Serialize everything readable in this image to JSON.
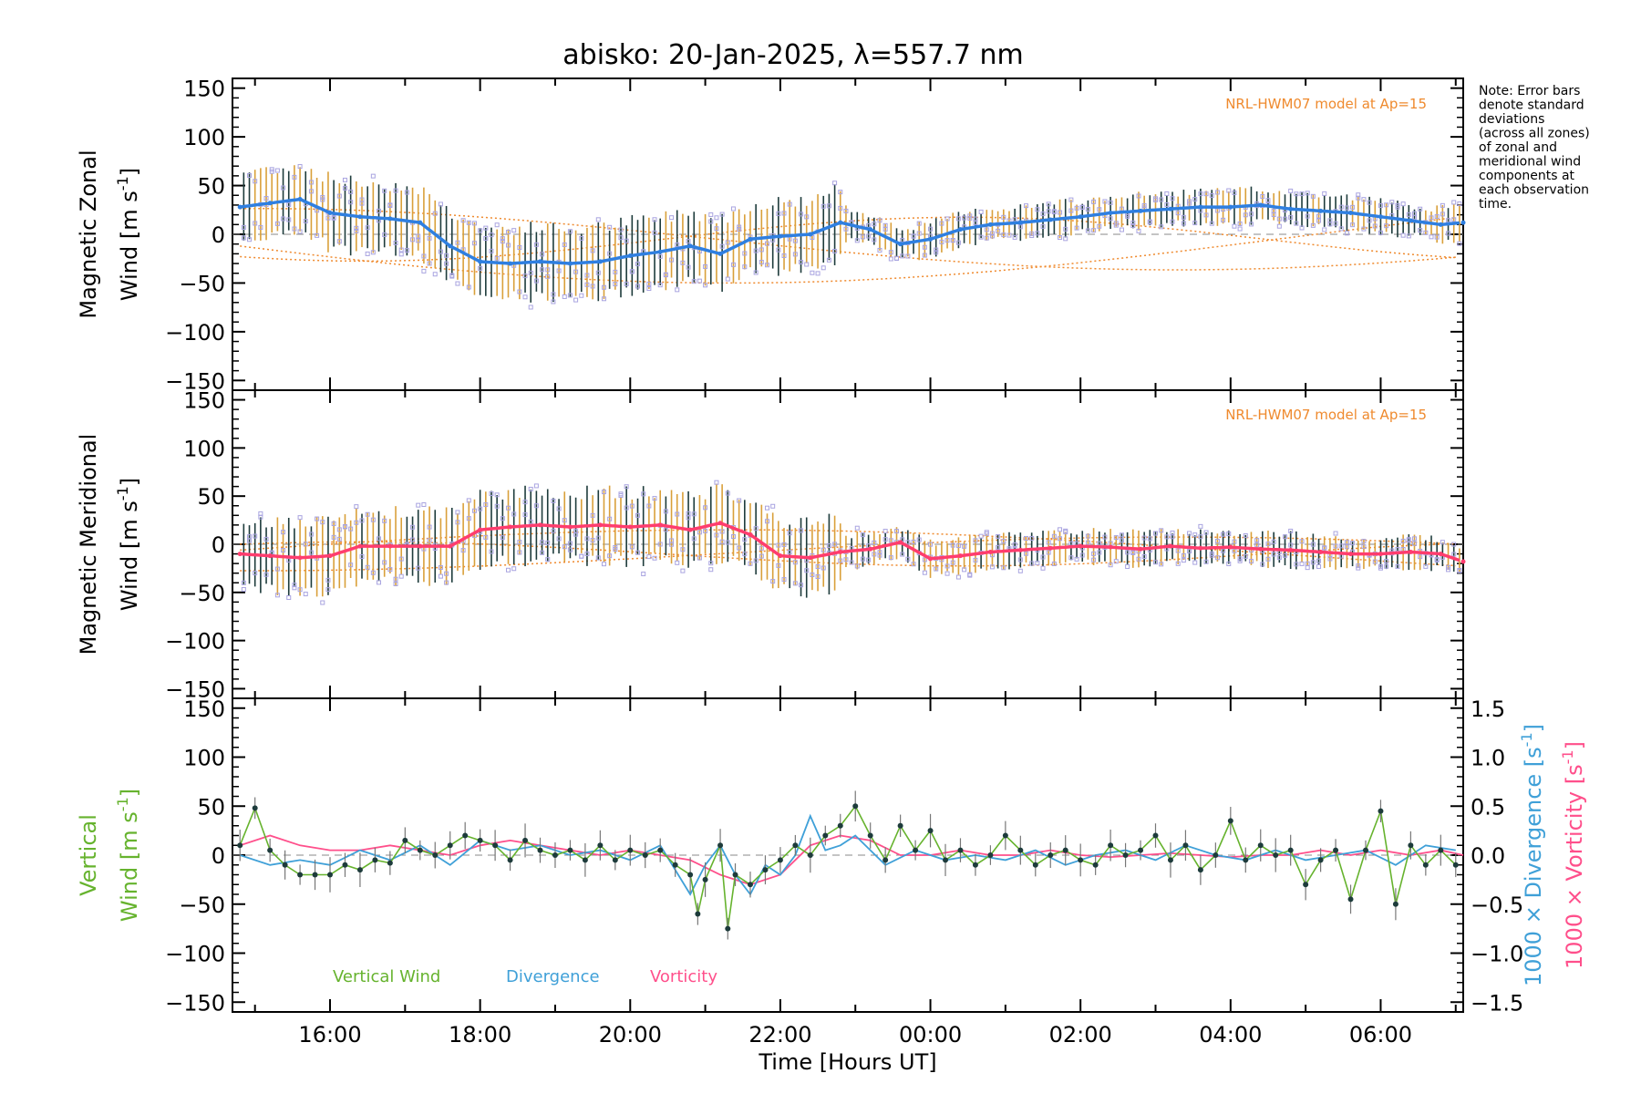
{
  "title": "abisko: 20-Jan-2025, λ=557.7 nm",
  "xlabel": "Time [Hours UT]",
  "x_ticks": [
    "16:00",
    "18:00",
    "20:00",
    "22:00",
    "00:00",
    "02:00",
    "04:00",
    "06:00"
  ],
  "y_ticks": [
    "150",
    "100",
    "50",
    "0",
    "−50",
    "−100",
    "−150"
  ],
  "right_ticks": [
    "1.5",
    "1.0",
    "0.5",
    "0.0",
    "−0.5",
    "−1.0",
    "−1.5"
  ],
  "note": [
    "Note: Error bars",
    "denote standard",
    "deviations",
    "(across all zones)",
    "of zonal and",
    "meridional wind",
    "components at",
    "each observation",
    "time."
  ],
  "model_label": "NRL-HWM07 model at Ap=15",
  "panels": {
    "zonal": {
      "ylabel_line1": "Magnetic Zonal",
      "ylabel_line2": "Wind [m s",
      "sup": "-1",
      "close": "]"
    },
    "meridional": {
      "ylabel_line1": "Magnetic Meridional",
      "ylabel_line2": "Wind [m s",
      "sup": "-1",
      "close": "]"
    },
    "vertical": {
      "ylabel_line1": "Vertical",
      "ylabel_line2": "Wind [m s",
      "sup": "-1",
      "close": "]"
    }
  },
  "right_axis": {
    "div_label": "1000 × Divergence [s",
    "div_sup": "-1",
    "div_close": "]",
    "vort_label": "1000 × Vorticity [s",
    "vort_sup": "-1",
    "vort_close": "]"
  },
  "legend": {
    "vertical": "Vertical Wind",
    "divergence": "Divergence",
    "vorticity": "Vorticity"
  },
  "colors": {
    "zonal": "#2f7fe0",
    "meridional": "#ff3d6e",
    "vertical": "#66b32e",
    "divergence": "#3fa0d8",
    "vorticity": "#ff4f8b",
    "model": "#ef8a2e",
    "scatter": "#a9a4e0",
    "errbar": "#1d3b3b",
    "text": "#000000"
  },
  "chart_data": [
    {
      "type": "line",
      "title": "abisko: 20-Jan-2025, λ=557.7 nm",
      "ylabel": "Magnetic Zonal Wind [m s-1]",
      "xlim": [
        14.7,
        31.1
      ],
      "ylim": [
        -160,
        160
      ],
      "series": [
        {
          "x": [
            14.8,
            15.2,
            15.6,
            16.0,
            16.4,
            16.8,
            17.2,
            17.6,
            18.0,
            18.4,
            18.8,
            19.2,
            19.6,
            20.0,
            20.4,
            20.8,
            21.2,
            21.6,
            22.0,
            22.4,
            22.8,
            23.2,
            23.6,
            24.0,
            24.4,
            24.8,
            25.2,
            25.6,
            26.0,
            26.4,
            26.8,
            27.2,
            27.6,
            28.0,
            28.4,
            28.8,
            29.2,
            29.6,
            30.0,
            30.4,
            30.8,
            31.1
          ],
          "values": [
            28,
            32,
            36,
            22,
            18,
            16,
            12,
            -12,
            -28,
            -30,
            -28,
            -30,
            -28,
            -22,
            -18,
            -12,
            -20,
            -5,
            -2,
            0,
            12,
            5,
            -10,
            -5,
            5,
            10,
            12,
            15,
            18,
            22,
            24,
            26,
            28,
            28,
            30,
            26,
            24,
            22,
            18,
            14,
            10,
            12
          ]
        }
      ]
    },
    {
      "type": "line",
      "ylabel": "Magnetic Meridional Wind [m s-1]",
      "xlim": [
        14.7,
        31.1
      ],
      "ylim": [
        -160,
        160
      ],
      "series": [
        {
          "x": [
            14.8,
            15.2,
            15.6,
            16.0,
            16.4,
            16.8,
            17.2,
            17.6,
            18.0,
            18.4,
            18.8,
            19.2,
            19.6,
            20.0,
            20.4,
            20.8,
            21.2,
            21.6,
            22.0,
            22.4,
            22.8,
            23.2,
            23.6,
            24.0,
            24.4,
            24.8,
            25.2,
            25.6,
            26.0,
            26.4,
            26.8,
            27.2,
            27.6,
            28.0,
            28.4,
            28.8,
            29.2,
            29.6,
            30.0,
            30.4,
            30.8,
            31.1
          ],
          "values": [
            -10,
            -12,
            -14,
            -12,
            -2,
            -2,
            -2,
            -2,
            15,
            18,
            20,
            18,
            20,
            18,
            20,
            15,
            22,
            10,
            -12,
            -14,
            -8,
            -5,
            2,
            -15,
            -12,
            -8,
            -6,
            -4,
            -2,
            -3,
            -5,
            -2,
            -4,
            -3,
            -5,
            -6,
            -8,
            -10,
            -10,
            -8,
            -10,
            -18
          ]
        }
      ]
    },
    {
      "type": "line",
      "legend": [
        "Vertical Wind",
        "Divergence",
        "Vorticity"
      ],
      "ylabel": "Vertical Wind [m s-1]",
      "xlim": [
        14.7,
        31.1
      ],
      "ylim": [
        -160,
        160
      ],
      "y2label": "1000 × Divergence [s-1] / 1000 × Vorticity [s-1]",
      "y2lim": [
        -1.6,
        1.6
      ],
      "series": [
        {
          "name": "Vertical Wind",
          "x": [
            14.8,
            15.0,
            15.2,
            15.4,
            15.6,
            15.8,
            16.0,
            16.2,
            16.4,
            16.6,
            16.8,
            17.0,
            17.2,
            17.4,
            17.6,
            17.8,
            18.0,
            18.2,
            18.4,
            18.6,
            18.8,
            19.0,
            19.2,
            19.4,
            19.6,
            19.8,
            20.0,
            20.2,
            20.4,
            20.6,
            20.8,
            20.9,
            21.0,
            21.2,
            21.3,
            21.4,
            21.6,
            21.8,
            22.0,
            22.2,
            22.4,
            22.6,
            22.8,
            23.0,
            23.2,
            23.4,
            23.6,
            23.8,
            24.0,
            24.2,
            24.4,
            24.6,
            24.8,
            25.0,
            25.2,
            25.4,
            25.6,
            25.8,
            26.0,
            26.2,
            26.4,
            26.6,
            26.8,
            27.0,
            27.2,
            27.4,
            27.6,
            27.8,
            28.0,
            28.2,
            28.4,
            28.6,
            28.8,
            29.0,
            29.2,
            29.4,
            29.6,
            29.8,
            30.0,
            30.2,
            30.4,
            30.6,
            30.8,
            31.0
          ],
          "values": [
            10,
            48,
            5,
            -10,
            -20,
            -20,
            -20,
            -10,
            -15,
            -5,
            -8,
            15,
            5,
            0,
            10,
            20,
            15,
            10,
            -5,
            15,
            5,
            0,
            5,
            -5,
            10,
            -5,
            5,
            0,
            5,
            -10,
            -20,
            -60,
            -25,
            10,
            -75,
            -20,
            -30,
            -15,
            -5,
            10,
            0,
            20,
            30,
            50,
            20,
            -5,
            30,
            5,
            25,
            -5,
            5,
            -10,
            0,
            20,
            5,
            -10,
            0,
            5,
            -5,
            -10,
            10,
            0,
            5,
            20,
            -5,
            10,
            -15,
            0,
            35,
            -5,
            10,
            0,
            5,
            -30,
            -5,
            5,
            -45,
            5,
            45,
            -50,
            10,
            -10,
            5,
            -10
          ]
        },
        {
          "name": "Divergence",
          "x": [
            14.8,
            15.2,
            15.6,
            16.0,
            16.4,
            16.8,
            17.2,
            17.6,
            18.0,
            18.4,
            18.8,
            19.2,
            19.6,
            20.0,
            20.4,
            20.8,
            21.0,
            21.2,
            21.4,
            21.6,
            21.8,
            22.0,
            22.2,
            22.4,
            22.6,
            22.8,
            23.0,
            23.4,
            23.8,
            24.2,
            24.6,
            25.0,
            25.4,
            25.8,
            26.2,
            26.6,
            27.0,
            27.4,
            27.8,
            28.2,
            28.6,
            29.0,
            29.4,
            29.8,
            30.2,
            30.6,
            31.0
          ],
          "values": [
            0.0,
            -0.1,
            -0.05,
            -0.1,
            0.05,
            -0.05,
            0.1,
            -0.1,
            0.15,
            0.05,
            0.1,
            0.0,
            0.05,
            -0.05,
            0.1,
            -0.4,
            -0.1,
            0.1,
            -0.2,
            -0.4,
            -0.1,
            -0.2,
            0.0,
            0.4,
            0.05,
            0.1,
            0.2,
            -0.1,
            0.05,
            -0.05,
            0.0,
            -0.05,
            0.05,
            -0.1,
            0.0,
            0.05,
            -0.05,
            0.1,
            0.0,
            -0.05,
            0.05,
            -0.05,
            0.0,
            0.05,
            -0.1,
            0.1,
            0.05
          ]
        },
        {
          "name": "Vorticity",
          "x": [
            14.8,
            15.2,
            15.6,
            16.0,
            16.4,
            16.8,
            17.2,
            17.6,
            18.0,
            18.4,
            18.8,
            19.2,
            19.6,
            20.0,
            20.4,
            20.8,
            21.2,
            21.6,
            22.0,
            22.4,
            22.8,
            23.2,
            23.6,
            24.0,
            24.4,
            24.8,
            25.2,
            25.6,
            26.0,
            26.4,
            26.8,
            27.2,
            27.6,
            28.0,
            28.4,
            28.8,
            29.2,
            29.6,
            30.0,
            30.4,
            30.8,
            31.1
          ],
          "values": [
            0.1,
            0.2,
            0.1,
            0.05,
            0.05,
            0.1,
            0.05,
            0.0,
            0.1,
            0.15,
            0.1,
            0.05,
            0.0,
            0.05,
            0.0,
            -0.05,
            -0.2,
            -0.3,
            -0.2,
            0.1,
            0.2,
            0.15,
            0.0,
            0.0,
            0.05,
            0.0,
            0.0,
            0.05,
            0.0,
            -0.02,
            0.0,
            0.02,
            0.0,
            -0.02,
            0.0,
            0.0,
            0.05,
            0.0,
            0.05,
            0.0,
            0.05,
            0.0
          ]
        }
      ]
    }
  ]
}
